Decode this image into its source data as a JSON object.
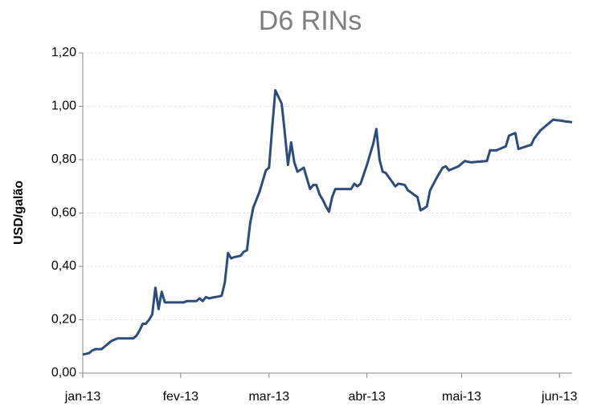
{
  "chart_data": {
    "type": "line",
    "title": "D6 RINs",
    "y_label": "USD/galão",
    "categories": [
      "jan-13",
      null,
      null,
      null,
      null,
      null,
      null,
      null,
      null,
      null,
      null,
      null,
      null,
      null,
      null,
      null,
      null,
      null,
      null,
      null,
      null,
      null,
      null,
      null,
      null,
      null,
      null,
      null,
      null,
      null,
      null,
      "fev-13",
      null,
      null,
      null,
      null,
      null,
      null,
      null,
      null,
      null,
      null,
      null,
      null,
      null,
      null,
      null,
      null,
      null,
      null,
      null,
      null,
      null,
      null,
      null,
      null,
      null,
      null,
      null,
      "mar-13",
      null,
      null,
      null,
      null,
      null,
      null,
      null,
      null,
      null,
      null,
      null,
      null,
      null,
      null,
      null,
      null,
      null,
      null,
      null,
      null,
      null,
      null,
      null,
      null,
      null,
      null,
      null,
      null,
      null,
      null,
      "abr-13",
      null,
      null,
      null,
      null,
      null,
      null,
      null,
      null,
      null,
      null,
      null,
      null,
      null,
      null,
      null,
      null,
      null,
      null,
      null,
      null,
      null,
      null,
      null,
      null,
      null,
      null,
      null,
      null,
      null,
      "mai-13",
      null,
      null,
      null,
      null,
      null,
      null,
      null,
      null,
      null,
      null,
      null,
      null,
      null,
      null,
      null,
      null,
      null,
      null,
      null,
      null,
      null,
      null,
      null,
      null,
      null,
      null,
      null,
      null,
      null,
      null,
      "jun-13",
      null,
      null,
      null,
      null
    ],
    "series": [
      {
        "name": "D6 RINs",
        "color": "#2c4c7c",
        "values": [
          0.07,
          0.072,
          0.075,
          0.085,
          0.09,
          0.09,
          0.09,
          0.1,
          0.11,
          0.12,
          0.125,
          0.13,
          0.13,
          0.13,
          0.13,
          0.13,
          0.13,
          0.14,
          0.16,
          0.185,
          0.185,
          0.2,
          0.22,
          0.32,
          0.24,
          0.305,
          0.265,
          0.265,
          0.265,
          0.265,
          0.265,
          0.265,
          0.265,
          0.27,
          0.27,
          0.27,
          0.27,
          0.28,
          0.27,
          0.285,
          0.28,
          0.283,
          0.285,
          0.287,
          0.29,
          0.34,
          0.45,
          0.43,
          0.435,
          0.437,
          0.44,
          0.455,
          0.46,
          0.56,
          0.62,
          0.65,
          0.68,
          0.72,
          0.76,
          0.77,
          0.92,
          1.06,
          1.035,
          1.01,
          0.9,
          0.78,
          0.865,
          0.79,
          0.755,
          0.762,
          0.77,
          0.73,
          0.69,
          0.705,
          0.705,
          0.67,
          0.65,
          0.625,
          0.605,
          0.66,
          0.69,
          0.69,
          0.69,
          0.69,
          0.69,
          0.69,
          0.71,
          0.7,
          0.71,
          0.745,
          0.78,
          0.82,
          0.86,
          0.915,
          0.8,
          0.755,
          0.75,
          0.733,
          0.717,
          0.7,
          0.71,
          0.708,
          0.705,
          0.685,
          0.677,
          0.668,
          0.66,
          0.61,
          0.617,
          0.625,
          0.685,
          0.707,
          0.73,
          0.75,
          0.77,
          0.775,
          0.76,
          0.765,
          0.77,
          0.775,
          0.785,
          0.795,
          0.792,
          0.79,
          0.791,
          0.792,
          0.793,
          0.794,
          0.795,
          0.835,
          0.835,
          0.835,
          0.84,
          0.845,
          0.85,
          0.89,
          0.895,
          0.9,
          0.84,
          0.844,
          0.848,
          0.852,
          0.855,
          0.88,
          0.895,
          0.91,
          0.92,
          0.93,
          0.94,
          0.95,
          0.948,
          0.947,
          0.945,
          0.943,
          0.942,
          0.94
        ]
      }
    ],
    "ylim": [
      0,
      1.2
    ],
    "yticks": [
      {
        "value": 0,
        "label": "0,00"
      },
      {
        "value": 0.2,
        "label": "0,20"
      },
      {
        "value": 0.4,
        "label": "0,40"
      },
      {
        "value": 0.6,
        "label": "0,60"
      },
      {
        "value": 0.8,
        "label": "0,80"
      },
      {
        "value": 1.0,
        "label": "1,00"
      },
      {
        "value": 1.2,
        "label": "1,20"
      }
    ],
    "grid": true
  }
}
